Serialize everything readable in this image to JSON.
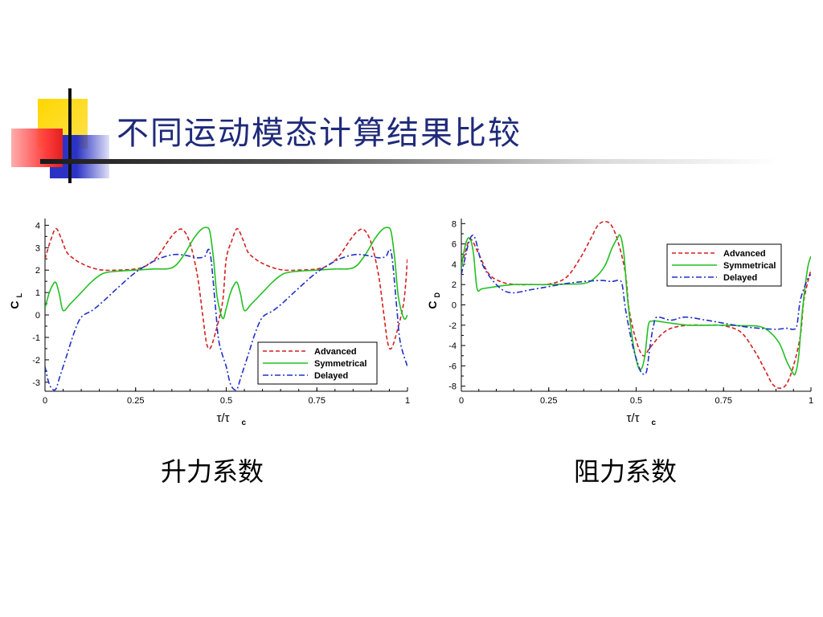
{
  "slide": {
    "title": "不同运动模态计算结果比较",
    "captions": [
      "升力系数",
      "阻力系数"
    ]
  },
  "colors": {
    "title": "#1f2a7a",
    "advanced": "#d42020",
    "symmetrical": "#22c022",
    "delayed": "#2030c8",
    "deco_yellow": "#ffd700",
    "deco_blue": "#2b33c4",
    "deco_red": "#ff3a3a"
  },
  "chart_data": [
    {
      "type": "line",
      "ylabel": "C",
      "ylabel_sub": "L",
      "xlabel": "τ/τ",
      "xlabel_sub": "c",
      "xlim": [
        0,
        1
      ],
      "ylim": [
        -3.4,
        4.3
      ],
      "xticks": [
        0,
        0.25,
        0.5,
        0.75,
        1
      ],
      "xticklabels": [
        "0",
        "0.25",
        "0.5",
        "0.75",
        "1"
      ],
      "yticks": [
        4,
        3,
        2,
        1,
        0,
        -1,
        -2,
        -3
      ],
      "legend": "bottom-right",
      "series": [
        {
          "name": "Advanced",
          "style": "dashed",
          "x": [
            0,
            0.015,
            0.03,
            0.045,
            0.06,
            0.08,
            0.1,
            0.13,
            0.16,
            0.2,
            0.25,
            0.28,
            0.31,
            0.34,
            0.36,
            0.38,
            0.4,
            0.42,
            0.435,
            0.445,
            0.455,
            0.47,
            0.49,
            0.5,
            0.515,
            0.53,
            0.545,
            0.56,
            0.58,
            0.6,
            0.63,
            0.66,
            0.7,
            0.75,
            0.78,
            0.81,
            0.84,
            0.86,
            0.88,
            0.9,
            0.92,
            0.935,
            0.945,
            0.955,
            0.97,
            0.99,
            1.0
          ],
          "y": [
            2.5,
            3.3,
            3.85,
            3.4,
            2.8,
            2.5,
            2.3,
            2.1,
            2.0,
            2.0,
            2.05,
            2.2,
            2.6,
            3.3,
            3.7,
            3.8,
            3.2,
            1.8,
            0.0,
            -1.2,
            -1.5,
            -0.8,
            0.6,
            2.5,
            3.3,
            3.85,
            3.4,
            2.8,
            2.5,
            2.3,
            2.1,
            2.0,
            2.0,
            2.05,
            2.2,
            2.6,
            3.3,
            3.7,
            3.8,
            3.2,
            1.8,
            0.0,
            -1.2,
            -1.5,
            -0.8,
            0.6,
            2.5
          ]
        },
        {
          "name": "Symmetrical",
          "style": "solid",
          "x": [
            0,
            0.01,
            0.02,
            0.03,
            0.04,
            0.05,
            0.07,
            0.1,
            0.13,
            0.16,
            0.2,
            0.25,
            0.3,
            0.35,
            0.38,
            0.41,
            0.43,
            0.445,
            0.455,
            0.465,
            0.475,
            0.49,
            0.5,
            0.51,
            0.52,
            0.53,
            0.54,
            0.55,
            0.57,
            0.6,
            0.63,
            0.66,
            0.7,
            0.75,
            0.8,
            0.85,
            0.88,
            0.91,
            0.93,
            0.945,
            0.955,
            0.965,
            0.975,
            0.99,
            1.0
          ],
          "y": [
            0.3,
            0.9,
            1.3,
            1.45,
            0.9,
            0.2,
            0.5,
            1.0,
            1.5,
            1.85,
            1.95,
            2.0,
            2.05,
            2.1,
            2.6,
            3.4,
            3.8,
            3.9,
            3.7,
            2.5,
            0.8,
            -0.15,
            0.3,
            0.9,
            1.3,
            1.45,
            0.9,
            0.2,
            0.5,
            1.0,
            1.5,
            1.85,
            1.95,
            2.0,
            2.05,
            2.1,
            2.6,
            3.4,
            3.8,
            3.9,
            3.7,
            2.5,
            0.8,
            -0.15,
            0.0
          ]
        },
        {
          "name": "Delayed",
          "style": "dashdot",
          "x": [
            0,
            0.01,
            0.02,
            0.03,
            0.04,
            0.06,
            0.08,
            0.1,
            0.13,
            0.16,
            0.2,
            0.25,
            0.3,
            0.33,
            0.36,
            0.39,
            0.42,
            0.44,
            0.455,
            0.47,
            0.48,
            0.5,
            0.51,
            0.52,
            0.53,
            0.54,
            0.56,
            0.58,
            0.6,
            0.63,
            0.66,
            0.7,
            0.75,
            0.8,
            0.83,
            0.86,
            0.89,
            0.92,
            0.94,
            0.955,
            0.97,
            0.98,
            1.0
          ],
          "y": [
            -2.3,
            -3.0,
            -3.3,
            -3.3,
            -2.8,
            -1.8,
            -0.8,
            -0.1,
            0.2,
            0.6,
            1.2,
            1.9,
            2.4,
            2.6,
            2.7,
            2.65,
            2.55,
            2.6,
            2.8,
            0.4,
            -1.2,
            -2.3,
            -3.0,
            -3.3,
            -3.3,
            -2.8,
            -1.8,
            -0.8,
            -0.1,
            0.2,
            0.6,
            1.2,
            1.9,
            2.4,
            2.6,
            2.7,
            2.65,
            2.55,
            2.6,
            2.8,
            0.4,
            -1.2,
            -2.3
          ]
        }
      ]
    },
    {
      "type": "line",
      "ylabel": "C",
      "ylabel_sub": "D",
      "xlabel": "τ/τ",
      "xlabel_sub": "c",
      "xlim": [
        0,
        1
      ],
      "ylim": [
        -8.5,
        8.5
      ],
      "xticks": [
        0,
        0.25,
        0.5,
        0.75,
        1
      ],
      "xticklabels": [
        "0",
        "0.25",
        "0.5",
        "0.75",
        "1"
      ],
      "yticks": [
        8,
        6,
        4,
        2,
        0,
        -2,
        -4,
        -6,
        -8
      ],
      "legend": "top-right",
      "series": [
        {
          "name": "Advanced",
          "style": "dashed",
          "x": [
            0,
            0.01,
            0.02,
            0.03,
            0.05,
            0.08,
            0.12,
            0.16,
            0.2,
            0.25,
            0.3,
            0.34,
            0.37,
            0.39,
            0.41,
            0.43,
            0.45,
            0.47,
            0.48,
            0.5,
            0.52,
            0.54,
            0.57,
            0.6,
            0.65,
            0.7,
            0.75,
            0.8,
            0.84,
            0.87,
            0.89,
            0.91,
            0.93,
            0.95,
            0.97,
            0.98,
            1.0
          ],
          "y": [
            4.0,
            5.0,
            6.2,
            6.4,
            5.0,
            3.0,
            2.2,
            2.0,
            2.0,
            2.05,
            2.7,
            4.6,
            6.5,
            7.8,
            8.2,
            7.8,
            6.0,
            3.0,
            -0.5,
            -3.5,
            -5.0,
            -4.2,
            -3.0,
            -2.3,
            -2.0,
            -2.0,
            -2.05,
            -2.7,
            -4.6,
            -6.5,
            -7.8,
            -8.2,
            -7.8,
            -6.0,
            -3.0,
            0.5,
            3.5
          ]
        },
        {
          "name": "Symmetrical",
          "style": "solid",
          "x": [
            0,
            0.005,
            0.015,
            0.025,
            0.035,
            0.045,
            0.06,
            0.1,
            0.15,
            0.2,
            0.25,
            0.3,
            0.35,
            0.38,
            0.41,
            0.43,
            0.445,
            0.455,
            0.465,
            0.475,
            0.49,
            0.505,
            0.515,
            0.525,
            0.535,
            0.545,
            0.56,
            0.6,
            0.65,
            0.7,
            0.75,
            0.8,
            0.85,
            0.88,
            0.91,
            0.93,
            0.945,
            0.955,
            0.965,
            0.975,
            0.99,
            1.0
          ],
          "y": [
            3.5,
            4.8,
            6.3,
            6.5,
            5.0,
            1.6,
            1.6,
            1.8,
            2.0,
            2.0,
            2.0,
            2.05,
            2.1,
            2.6,
            3.8,
            5.5,
            6.5,
            6.8,
            5.0,
            0.8,
            -3.5,
            -6.0,
            -6.3,
            -5.0,
            -2.0,
            -1.6,
            -1.6,
            -1.8,
            -2.0,
            -2.0,
            -2.0,
            -2.05,
            -2.1,
            -2.6,
            -3.8,
            -5.5,
            -6.5,
            -6.8,
            -5.0,
            -0.8,
            3.5,
            4.8
          ]
        },
        {
          "name": "Delayed",
          "style": "dashdot",
          "x": [
            0,
            0.01,
            0.02,
            0.03,
            0.04,
            0.06,
            0.1,
            0.14,
            0.2,
            0.25,
            0.3,
            0.35,
            0.4,
            0.43,
            0.45,
            0.46,
            0.47,
            0.49,
            0.51,
            0.52,
            0.53,
            0.54,
            0.55,
            0.56,
            0.6,
            0.64,
            0.7,
            0.75,
            0.8,
            0.85,
            0.9,
            0.93,
            0.95,
            0.96,
            0.97,
            0.99,
            1.0
          ],
          "y": [
            3.0,
            4.5,
            6.0,
            6.8,
            6.5,
            4.0,
            2.0,
            1.2,
            1.5,
            1.8,
            2.1,
            2.3,
            2.4,
            2.3,
            2.4,
            2.0,
            -0.5,
            -4.0,
            -6.3,
            -6.8,
            -6.5,
            -4.0,
            -2.0,
            -1.2,
            -1.5,
            -1.2,
            -1.5,
            -1.8,
            -2.1,
            -2.3,
            -2.4,
            -2.3,
            -2.4,
            -2.0,
            0.5,
            2.5,
            3.0
          ]
        }
      ]
    }
  ]
}
